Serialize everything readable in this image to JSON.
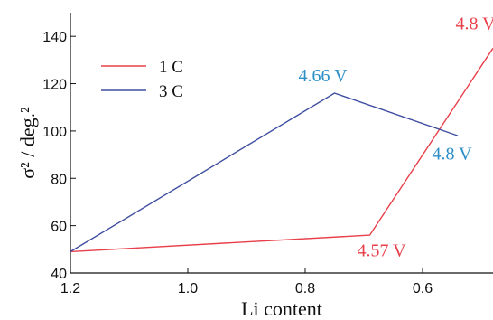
{
  "chart_data": {
    "type": "line",
    "title": "",
    "xlabel": "Li content",
    "ylabel": "σ² / deg.²",
    "xlim": [
      1.2,
      0.48
    ],
    "ylim": [
      40,
      150
    ],
    "x_reversed": true,
    "grid": false,
    "legend_position": "top-left",
    "x_ticks": [
      1.2,
      1.0,
      0.8,
      0.6
    ],
    "x_tick_labels": [
      "1.2",
      "1.0",
      "0.8",
      "0.6"
    ],
    "y_ticks": [
      40,
      60,
      80,
      100,
      120,
      140
    ],
    "y_tick_labels": [
      "40",
      "60",
      "80",
      "100",
      "120",
      "140"
    ],
    "series": [
      {
        "name": "1 C",
        "color": "#e8404a",
        "x": [
          1.2,
          0.69,
          0.48
        ],
        "y": [
          49,
          56,
          135
        ]
      },
      {
        "name": "3 C",
        "color": "#3f4ea0",
        "x": [
          1.2,
          0.75,
          0.54
        ],
        "y": [
          49,
          116,
          98
        ]
      }
    ],
    "annotations": [
      {
        "text": "4.8 V",
        "x": 0.51,
        "y": 143,
        "color": "#e8404a"
      },
      {
        "text": "4.66 V",
        "x": 0.77,
        "y": 121,
        "color": "#2c8fc8"
      },
      {
        "text": "4.8 V",
        "x": 0.55,
        "y": 88,
        "color": "#2c8fc8"
      },
      {
        "text": "4.57 V",
        "x": 0.67,
        "y": 47,
        "color": "#e8404a"
      }
    ]
  }
}
